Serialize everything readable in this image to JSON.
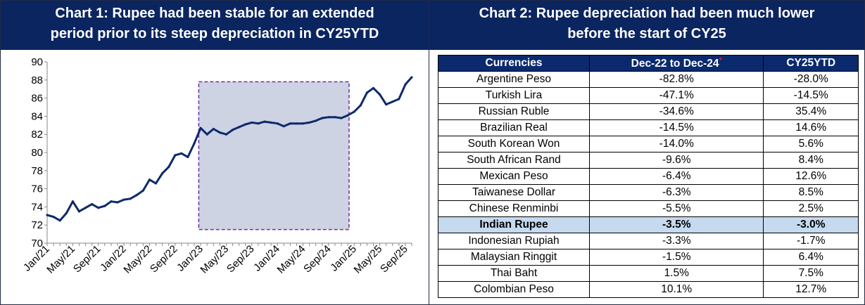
{
  "chart1": {
    "title_line1": "Chart 1: Rupee had been stable for an extended",
    "title_line2": "period prior to its steep depreciation in CY25YTD",
    "chart_data": {
      "type": "line",
      "title": "Chart 1: Rupee had been stable for an extended period prior to its steep depreciation in CY25YTD",
      "xlabel": "",
      "ylabel": "",
      "ylim": [
        70,
        90
      ],
      "yticks": [
        "70",
        "72",
        "74",
        "76",
        "78",
        "80",
        "82",
        "84",
        "86",
        "88",
        "90"
      ],
      "xticks": [
        "Jan/21",
        "May/21",
        "Sep/21",
        "Jan/22",
        "May/22",
        "Sep/22",
        "Jan/23",
        "May/23",
        "Sep/23",
        "Jan/24",
        "May/24",
        "Sep/24",
        "Jan/25",
        "May/25",
        "Sep/25"
      ],
      "x_index_range": [
        0,
        57
      ],
      "series_color": "#0d2a6b",
      "highlight_color": "#cdd3e3",
      "highlight_border_color": "#7030a0",
      "highlight": {
        "x_start": 23.7,
        "x_end": 47.2,
        "y_low": 71.5,
        "y_high": 87.8
      },
      "grid": false,
      "x": [
        0,
        1,
        2,
        3,
        4,
        5,
        6,
        7,
        8,
        9,
        10,
        11,
        12,
        13,
        14,
        15,
        16,
        17,
        18,
        19,
        20,
        21,
        22,
        23,
        24,
        25,
        26,
        27,
        28,
        29,
        30,
        31,
        32,
        33,
        34,
        35,
        36,
        37,
        38,
        39,
        40,
        41,
        42,
        43,
        44,
        45,
        46,
        47,
        48,
        49,
        50,
        51,
        52,
        53,
        54,
        55,
        56,
        57
      ],
      "values": [
        73.1,
        72.9,
        72.5,
        73.3,
        74.6,
        73.5,
        73.9,
        74.3,
        73.9,
        74.1,
        74.6,
        74.5,
        74.8,
        74.9,
        75.3,
        75.8,
        77.0,
        76.6,
        77.7,
        78.4,
        79.7,
        79.9,
        79.5,
        81.0,
        82.7,
        82.0,
        82.6,
        82.2,
        82.0,
        82.5,
        82.8,
        83.1,
        83.3,
        83.2,
        83.4,
        83.3,
        83.2,
        82.9,
        83.2,
        83.2,
        83.2,
        83.3,
        83.5,
        83.8,
        83.9,
        83.9,
        83.8,
        84.1,
        84.5,
        85.2,
        86.6,
        87.1,
        86.4,
        85.3,
        85.6,
        85.9,
        87.5,
        88.3
      ]
    }
  },
  "chart2": {
    "title_line1": "Chart 2: Rupee depreciation had been much lower",
    "title_line2": "before the start of CY25",
    "headers": {
      "currency": "Currencies",
      "period1": "Dec-22 to Dec-24",
      "asterisk": "*",
      "period2": "CY25YTD"
    },
    "rows": [
      {
        "currency": "Argentine Peso",
        "p1": "-82.8%",
        "p2": "-28.0%"
      },
      {
        "currency": "Turkish Lira",
        "p1": "-47.1%",
        "p2": "-14.5%"
      },
      {
        "currency": "Russian Ruble",
        "p1": "-34.6%",
        "p2": "35.4%"
      },
      {
        "currency": "Brazilian Real",
        "p1": "-14.5%",
        "p2": "14.6%"
      },
      {
        "currency": "South Korean Won",
        "p1": "-14.0%",
        "p2": "5.6%"
      },
      {
        "currency": "South African Rand",
        "p1": "-9.6%",
        "p2": "8.4%"
      },
      {
        "currency": "Mexican Peso",
        "p1": "-6.4%",
        "p2": "12.6%"
      },
      {
        "currency": "Taiwanese Dollar",
        "p1": "-6.3%",
        "p2": "8.5%"
      },
      {
        "currency": "Chinese Renminbi",
        "p1": "-5.5%",
        "p2": "2.5%"
      },
      {
        "currency": "Indian Rupee",
        "p1": "-3.5%",
        "p2": "-3.0%"
      },
      {
        "currency": "Indonesian Rupiah",
        "p1": "-3.3%",
        "p2": "-1.7%"
      },
      {
        "currency": "Malaysian Ringgit",
        "p1": "-1.5%",
        "p2": "6.4%"
      },
      {
        "currency": "Thai Baht",
        "p1": "1.5%",
        "p2": "7.5%"
      },
      {
        "currency": "Colombian Peso",
        "p1": "10.1%",
        "p2": "12.7%"
      }
    ],
    "highlight_row": "Indian Rupee",
    "header_color": "#0b2a6e",
    "highlight_row_color": "#c5d9ef"
  }
}
